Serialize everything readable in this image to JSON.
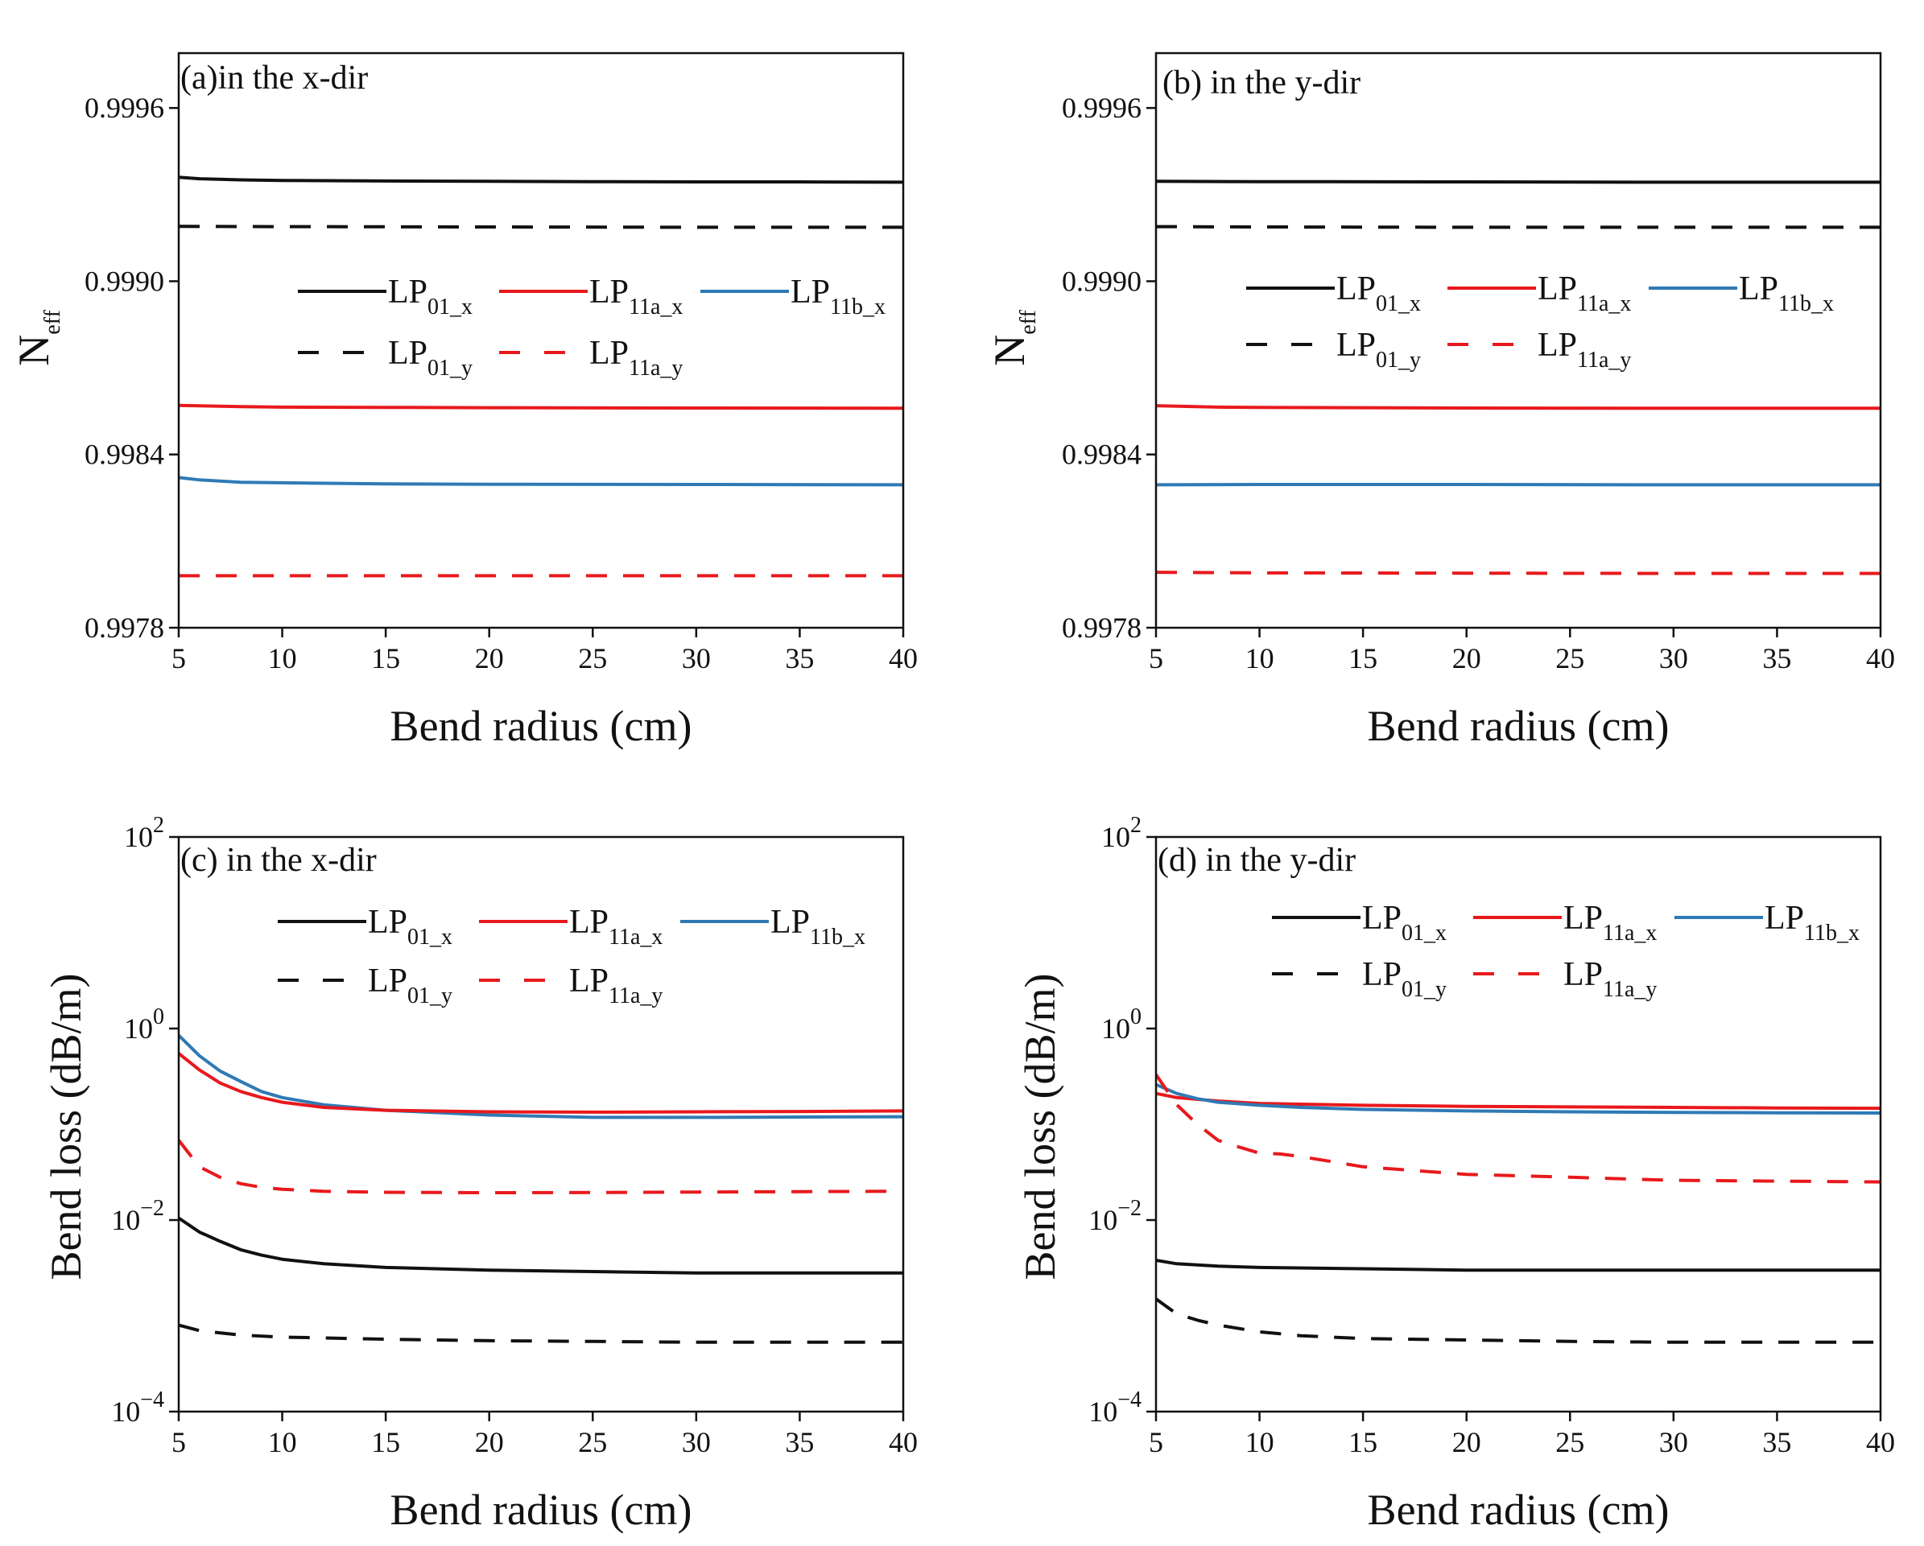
{
  "colors": {
    "black": "#111111",
    "red": "#e8191d",
    "blue": "#2f7ab5"
  },
  "chart_data": [
    {
      "type": "line",
      "id": "a",
      "title": "(a)in the x-dir",
      "xlabel": "Bend radius (cm)",
      "ylabel": "N",
      "ylabel_sub": "eff",
      "xlim": [
        5,
        40
      ],
      "ylim": [
        0.9978,
        0.99979
      ],
      "yscale": "linear",
      "xticks": [
        5,
        10,
        15,
        20,
        25,
        30,
        35,
        40
      ],
      "yticks": [
        0.9978,
        0.9984,
        0.999,
        0.9996
      ],
      "ytick_labels": [
        "0.9978",
        "0.9984",
        "0.9990",
        "0.9996"
      ],
      "legend": [
        {
          "base": "LP",
          "sub": "01_x",
          "color": "black",
          "dash": false
        },
        {
          "base": "LP",
          "sub": "11a_x",
          "color": "red",
          "dash": false
        },
        {
          "base": "LP",
          "sub": "11b_x",
          "color": "blue",
          "dash": false
        },
        {
          "base": "LP",
          "sub": "01_y",
          "color": "black",
          "dash": true
        },
        {
          "base": "LP",
          "sub": "11a_y",
          "color": "red",
          "dash": true
        }
      ],
      "series": [
        {
          "name": "LP01_x",
          "color": "black",
          "dash": false,
          "x": [
            5,
            6,
            8,
            10,
            15,
            20,
            25,
            30,
            35,
            40
          ],
          "values": [
            0.99936,
            0.999355,
            0.999351,
            0.999349,
            0.999347,
            0.999346,
            0.999345,
            0.999344,
            0.999344,
            0.999343
          ]
        },
        {
          "name": "LP01_y",
          "color": "black",
          "dash": true,
          "x": [
            5,
            10,
            20,
            30,
            40
          ],
          "values": [
            0.99919,
            0.999189,
            0.999188,
            0.999187,
            0.999187
          ]
        },
        {
          "name": "LP11a_x",
          "color": "red",
          "dash": false,
          "x": [
            5,
            8,
            10,
            15,
            20,
            30,
            40
          ],
          "values": [
            0.99857,
            0.998566,
            0.998564,
            0.998563,
            0.998562,
            0.998561,
            0.99856
          ]
        },
        {
          "name": "LP11b_x",
          "color": "blue",
          "dash": false,
          "x": [
            5,
            6,
            8,
            10,
            15,
            20,
            30,
            40
          ],
          "values": [
            0.99832,
            0.998312,
            0.998304,
            0.998302,
            0.998298,
            0.998297,
            0.998296,
            0.998295
          ]
        },
        {
          "name": "LP11a_y",
          "color": "red",
          "dash": true,
          "x": [
            5,
            10,
            20,
            30,
            40
          ],
          "values": [
            0.99798,
            0.99798,
            0.99798,
            0.99798,
            0.99798
          ]
        }
      ]
    },
    {
      "type": "line",
      "id": "b",
      "title": "(b) in the y-dir",
      "xlabel": "Bend radius (cm)",
      "ylabel": "N",
      "ylabel_sub": "eff",
      "xlim": [
        5,
        40
      ],
      "ylim": [
        0.9978,
        0.99979
      ],
      "yscale": "linear",
      "xticks": [
        5,
        10,
        15,
        20,
        25,
        30,
        35,
        40
      ],
      "yticks": [
        0.9978,
        0.9984,
        0.999,
        0.9996
      ],
      "ytick_labels": [
        "0.9978",
        "0.9984",
        "0.9990",
        "0.9996"
      ],
      "legend": [
        {
          "base": "LP",
          "sub": "01_x",
          "color": "black",
          "dash": false
        },
        {
          "base": "LP",
          "sub": "11a_x",
          "color": "red",
          "dash": false
        },
        {
          "base": "LP",
          "sub": "11b_x",
          "color": "blue",
          "dash": false
        },
        {
          "base": "LP",
          "sub": "01_y",
          "color": "black",
          "dash": true
        },
        {
          "base": "LP",
          "sub": "11a_y",
          "color": "red",
          "dash": true
        }
      ],
      "series": [
        {
          "name": "LP01_x",
          "color": "black",
          "dash": false,
          "x": [
            5,
            10,
            20,
            30,
            40
          ],
          "values": [
            0.999346,
            0.999345,
            0.999344,
            0.999343,
            0.999343
          ]
        },
        {
          "name": "LP01_y",
          "color": "black",
          "dash": true,
          "x": [
            5,
            10,
            20,
            30,
            40
          ],
          "values": [
            0.999189,
            0.999188,
            0.999187,
            0.999187,
            0.999187
          ]
        },
        {
          "name": "LP11a_x",
          "color": "red",
          "dash": false,
          "x": [
            5,
            8,
            10,
            20,
            30,
            40
          ],
          "values": [
            0.998569,
            0.998564,
            0.998563,
            0.998561,
            0.99856,
            0.99856
          ]
        },
        {
          "name": "LP11b_x",
          "color": "blue",
          "dash": false,
          "x": [
            5,
            10,
            20,
            30,
            40
          ],
          "values": [
            0.998295,
            0.998296,
            0.998296,
            0.998295,
            0.998295
          ]
        },
        {
          "name": "LP11a_y",
          "color": "red",
          "dash": true,
          "x": [
            5,
            10,
            20,
            30,
            40
          ],
          "values": [
            0.997992,
            0.99799,
            0.997989,
            0.997988,
            0.997988
          ]
        }
      ]
    },
    {
      "type": "line",
      "id": "c",
      "title": "(c) in the x-dir",
      "xlabel": "Bend radius (cm)",
      "ylabel": "Bend loss (dB/m)",
      "xlim": [
        5,
        40
      ],
      "ylim": [
        0.0001,
        100
      ],
      "yscale": "log",
      "xticks": [
        5,
        10,
        15,
        20,
        25,
        30,
        35,
        40
      ],
      "yticks": [
        0.0001,
        0.01,
        1,
        100
      ],
      "ytick_labels": [
        [
          "10",
          "−4"
        ],
        [
          "10",
          "−2"
        ],
        [
          "10",
          "0"
        ],
        [
          "10",
          "2"
        ]
      ],
      "legend": [
        {
          "base": "LP",
          "sub": "01_x",
          "color": "black",
          "dash": false
        },
        {
          "base": "LP",
          "sub": "11a_x",
          "color": "red",
          "dash": false
        },
        {
          "base": "LP",
          "sub": "11b_x",
          "color": "blue",
          "dash": false
        },
        {
          "base": "LP",
          "sub": "01_y",
          "color": "black",
          "dash": true
        },
        {
          "base": "LP",
          "sub": "11a_y",
          "color": "red",
          "dash": true
        }
      ],
      "series": [
        {
          "name": "LP11b_x",
          "color": "blue",
          "dash": false,
          "x": [
            5,
            6,
            7,
            8,
            9,
            10,
            12,
            15,
            20,
            25,
            30,
            35,
            40
          ],
          "values": [
            0.85,
            0.52,
            0.36,
            0.28,
            0.22,
            0.19,
            0.16,
            0.14,
            0.125,
            0.118,
            0.118,
            0.119,
            0.12
          ]
        },
        {
          "name": "LP11a_x",
          "color": "red",
          "dash": false,
          "x": [
            5,
            6,
            7,
            8,
            9,
            10,
            12,
            15,
            20,
            25,
            30,
            35,
            40
          ],
          "values": [
            0.55,
            0.37,
            0.27,
            0.22,
            0.19,
            0.17,
            0.15,
            0.14,
            0.135,
            0.134,
            0.135,
            0.136,
            0.138
          ]
        },
        {
          "name": "LP11a_y",
          "color": "red",
          "dash": true,
          "x": [
            5,
            6,
            7,
            8,
            9,
            10,
            12,
            15,
            20,
            25,
            30,
            35,
            40
          ],
          "values": [
            0.068,
            0.036,
            0.028,
            0.024,
            0.022,
            0.021,
            0.02,
            0.0195,
            0.0193,
            0.0194,
            0.0196,
            0.0198,
            0.02
          ]
        },
        {
          "name": "LP01_x",
          "color": "black",
          "dash": false,
          "x": [
            5,
            6,
            7,
            8,
            9,
            10,
            12,
            15,
            20,
            25,
            30,
            35,
            40
          ],
          "values": [
            0.0105,
            0.0075,
            0.006,
            0.0049,
            0.0043,
            0.0039,
            0.0035,
            0.0032,
            0.003,
            0.0029,
            0.0028,
            0.0028,
            0.0028
          ]
        },
        {
          "name": "LP01_y",
          "color": "black",
          "dash": true,
          "x": [
            5,
            6,
            8,
            10,
            15,
            20,
            25,
            30,
            35,
            40
          ],
          "values": [
            0.0008,
            0.0007,
            0.00063,
            0.0006,
            0.00057,
            0.00055,
            0.00054,
            0.00053,
            0.00053,
            0.00053
          ]
        }
      ]
    },
    {
      "type": "line",
      "id": "d",
      "title": "(d) in the y-dir",
      "xlabel": "Bend radius (cm)",
      "ylabel": "Bend loss (dB/m)",
      "xlim": [
        5,
        40
      ],
      "ylim": [
        0.0001,
        100
      ],
      "yscale": "log",
      "xticks": [
        5,
        10,
        15,
        20,
        25,
        30,
        35,
        40
      ],
      "yticks": [
        0.0001,
        0.01,
        1,
        100
      ],
      "ytick_labels": [
        [
          "10",
          "−4"
        ],
        [
          "10",
          "−2"
        ],
        [
          "10",
          "0"
        ],
        [
          "10",
          "2"
        ]
      ],
      "legend": [
        {
          "base": "LP",
          "sub": "01_x",
          "color": "black",
          "dash": false
        },
        {
          "base": "LP",
          "sub": "11a_x",
          "color": "red",
          "dash": false
        },
        {
          "base": "LP",
          "sub": "11b_x",
          "color": "blue",
          "dash": false
        },
        {
          "base": "LP",
          "sub": "01_y",
          "color": "black",
          "dash": true
        },
        {
          "base": "LP",
          "sub": "11a_y",
          "color": "red",
          "dash": true
        }
      ],
      "series": [
        {
          "name": "LP11a_x",
          "color": "red",
          "dash": false,
          "x": [
            5,
            6,
            8,
            10,
            15,
            20,
            25,
            30,
            35,
            40
          ],
          "values": [
            0.21,
            0.19,
            0.175,
            0.165,
            0.158,
            0.154,
            0.152,
            0.15,
            0.148,
            0.147
          ]
        },
        {
          "name": "LP11b_x",
          "color": "blue",
          "dash": false,
          "x": [
            5,
            6,
            7,
            8,
            10,
            12,
            15,
            20,
            25,
            30,
            35,
            40
          ],
          "values": [
            0.26,
            0.21,
            0.185,
            0.17,
            0.158,
            0.15,
            0.143,
            0.138,
            0.135,
            0.133,
            0.132,
            0.131
          ]
        },
        {
          "name": "LP11a_y",
          "color": "red",
          "dash": true,
          "x": [
            5,
            6,
            7,
            8,
            9,
            10,
            11,
            12,
            15,
            20,
            25,
            30,
            35,
            40
          ],
          "values": [
            0.33,
            0.16,
            0.1,
            0.068,
            0.058,
            0.05,
            0.049,
            0.046,
            0.036,
            0.03,
            0.028,
            0.026,
            0.0255,
            0.025
          ]
        },
        {
          "name": "LP01_x",
          "color": "black",
          "dash": false,
          "x": [
            5,
            6,
            8,
            10,
            15,
            20,
            25,
            30,
            35,
            40
          ],
          "values": [
            0.0038,
            0.0035,
            0.0033,
            0.0032,
            0.0031,
            0.003,
            0.003,
            0.003,
            0.003,
            0.003
          ]
        },
        {
          "name": "LP01_y",
          "color": "black",
          "dash": true,
          "x": [
            5,
            6,
            7,
            8,
            10,
            12,
            15,
            20,
            25,
            30,
            35,
            40
          ],
          "values": [
            0.0015,
            0.00105,
            0.0009,
            0.0008,
            0.00068,
            0.00062,
            0.00058,
            0.00056,
            0.00054,
            0.00053,
            0.00053,
            0.00053
          ]
        }
      ]
    }
  ]
}
